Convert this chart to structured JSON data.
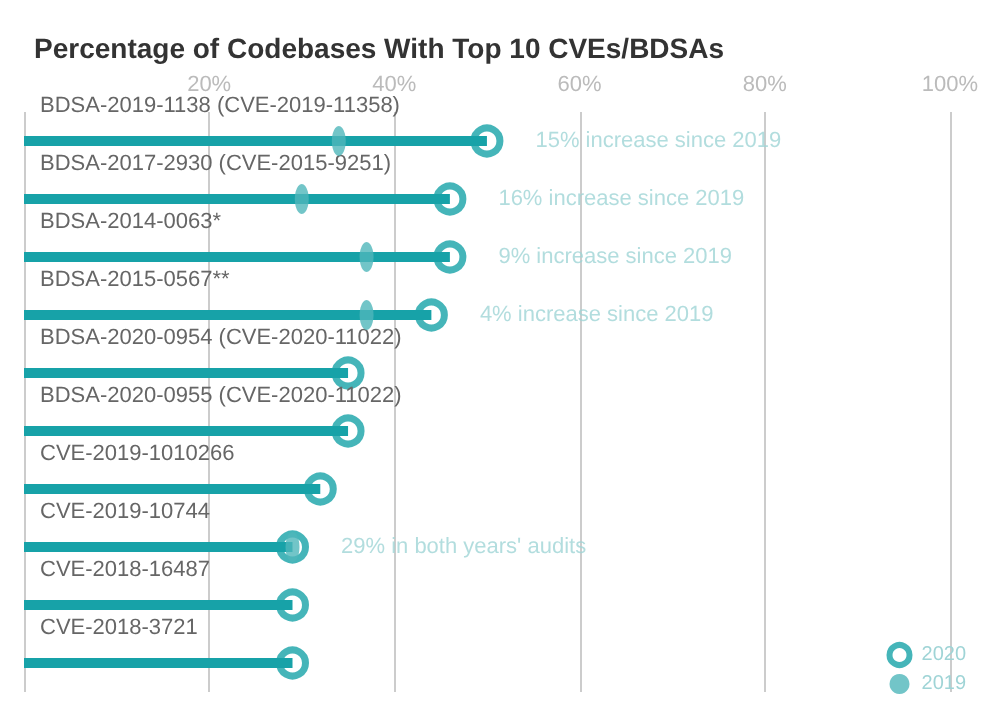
{
  "chart_data": {
    "type": "lollipop",
    "title": "Percentage of Codebases With Top 10 CVEs/BDSAs",
    "orientation": "horizontal",
    "categories": [
      "BDSA-2019-1138 (CVE-2019-11358)",
      "BDSA-2017-2930 (CVE-2015-9251)",
      "BDSA-2014-0063*",
      "BDSA-2015-0567**",
      "BDSA-2020-0954 (CVE-2020-11022)",
      "BDSA-2020-0955 (CVE-2020-11022)",
      "CVE-2019-1010266",
      "CVE-2019-10744",
      "CVE-2018-16487",
      "CVE-2018-3721"
    ],
    "series": [
      {
        "name": "2020",
        "color": "#17a2a8",
        "values": [
          50,
          46,
          46,
          44,
          35,
          35,
          32,
          29,
          29,
          29
        ],
        "value_labels": [
          "15% increase since 2019",
          "16% increase since 2019",
          "9% increase since 2019",
          "4% increase since 2019",
          null,
          null,
          null,
          "29% in both years' audits",
          null,
          null
        ]
      },
      {
        "name": "2019",
        "type": "scatter",
        "color": "#4fb6ba",
        "values": [
          34,
          30,
          37,
          37,
          null,
          null,
          null,
          29,
          null,
          null
        ]
      }
    ],
    "xlim": [
      0,
      100
    ],
    "xticks": [
      {
        "value": 0,
        "label": null
      },
      {
        "value": 20,
        "label": "20%"
      },
      {
        "value": 40,
        "label": "40%"
      },
      {
        "value": 60,
        "label": "60%"
      },
      {
        "value": 80,
        "label": "80%"
      },
      {
        "value": 100,
        "label": "100%"
      }
    ],
    "grid": "x",
    "legend": "bottom right"
  }
}
